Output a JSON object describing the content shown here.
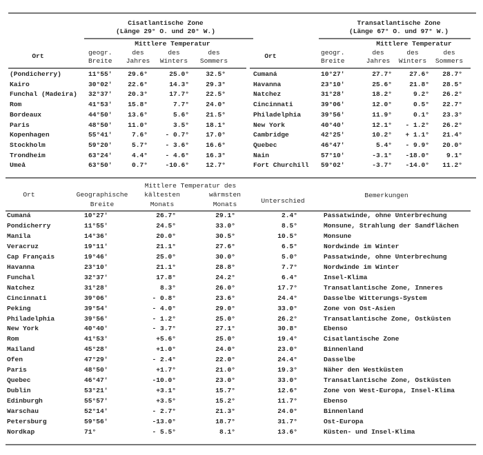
{
  "top_table": {
    "ort_label": "Ort",
    "left": {
      "zone_title": "Cisatlantische Zone",
      "zone_subtitle": "(Länge 29° O. und 20° W.)",
      "group_header": "Mittlere Temperatur",
      "headers": [
        [
          "geogr.",
          "Breite"
        ],
        [
          "des",
          "Jahres"
        ],
        [
          "des",
          "Winters"
        ],
        [
          "des",
          "Sommers"
        ]
      ],
      "rows": [
        [
          "(Pondicherry)",
          "11°55'",
          "29.6°",
          "25.0°",
          "32.5°"
        ],
        [
          "Kairo",
          "30°02'",
          "22.6°",
          "14.3°",
          "29.3°"
        ],
        [
          "Funchal (Madeira)",
          "32°37'",
          "20.3°",
          "17.7°",
          "22.5°"
        ],
        [
          "Rom",
          "41°53'",
          "15.8°",
          "7.7°",
          "24.0°"
        ],
        [
          "Bordeaux",
          "44°50'",
          "13.6°",
          "5.6°",
          "21.5°"
        ],
        [
          "Paris",
          "48°50'",
          "11.0°",
          "3.5°",
          "18.1°"
        ],
        [
          "Kopenhagen",
          "55°41'",
          "7.6°",
          "- 0.7°",
          "17.0°"
        ],
        [
          "Stockholm",
          "59°20'",
          "5.7°",
          "- 3.6°",
          "16.6°"
        ],
        [
          "Trondheim",
          "63°24'",
          "4.4°",
          "- 4.6°",
          "16.3°"
        ],
        [
          "Umeå",
          "63°50'",
          "0.7°",
          "-10.6°",
          "12.7°"
        ]
      ]
    },
    "right": {
      "zone_title": "Transatlantische Zone",
      "zone_subtitle": "(Länge 67° O. und 97° W.)",
      "group_header": "Mittlere Temperatur",
      "headers": [
        [
          "geogr.",
          "Breite"
        ],
        [
          "des",
          "Jahres"
        ],
        [
          "des",
          "Winters"
        ],
        [
          "des",
          "Sommers"
        ]
      ],
      "rows": [
        [
          "Cumaná",
          "10°27'",
          "27.7°",
          "27.6°",
          "28.7°"
        ],
        [
          "Havanna",
          "23°10'",
          "25.6°",
          "21.8°",
          "28.5°"
        ],
        [
          "Natchez",
          "31°28'",
          "18.2°",
          "9.2°",
          "26.2°"
        ],
        [
          "Cincinnati",
          "39°06'",
          "12.0°",
          "0.5°",
          "22.7°"
        ],
        [
          "Philadelphia",
          "39°56'",
          "11.9°",
          "0.1°",
          "23.3°"
        ],
        [
          "New York",
          "40°40'",
          "12.1°",
          "- 1.2°",
          "26.2°"
        ],
        [
          "Cambridge",
          "42°25'",
          "10.2°",
          "+ 1.1°",
          "21.4°"
        ],
        [
          "Quebec",
          "46°47'",
          "5.4°",
          "- 9.9°",
          "20.0°"
        ],
        [
          "Nain",
          "57°10'",
          "-3.1°",
          "-18.0°",
          "9.1°"
        ],
        [
          "Fort Churchill",
          "59°02'",
          "-3.7°",
          "-14.0°",
          "11.2°"
        ]
      ]
    }
  },
  "bottom_table": {
    "headers": {
      "ort": "Ort",
      "breite": [
        "Geographische",
        "Breite"
      ],
      "group": "Mittlere Temperatur des",
      "kalt": [
        "kältesten",
        "Monats"
      ],
      "warm": [
        "wärmsten",
        "Monats"
      ],
      "unterschied": "Unterschied",
      "bemerkungen": "Bemerkungen"
    },
    "rows": [
      [
        "Cumaná",
        "10°27'",
        "26.7°",
        "29.1°",
        "2.4°",
        "Passatwinde, ohne Unterbrechung"
      ],
      [
        "Pondicherry",
        "11°55'",
        "24.5°",
        "33.0°",
        "8.5°",
        "Monsune, Strahlung der Sandflächen"
      ],
      [
        "Manila",
        "14°36'",
        "20.0°",
        "30.5°",
        "10.5°",
        "Monsune"
      ],
      [
        "Veracruz",
        "19°11'",
        "21.1°",
        "27.6°",
        "6.5°",
        "Nordwinde im Winter"
      ],
      [
        "Cap Français",
        "19°46'",
        "25.0°",
        "30.0°",
        "5.0°",
        "Passatwinde, ohne Unterbrechung"
      ],
      [
        "Havanna",
        "23°10'",
        "21.1°",
        "28.8°",
        "7.7°",
        "Nordwinde im Winter"
      ],
      [
        "Funchal",
        "32°37'",
        "17.8°",
        "24.2°",
        "6.4°",
        "Insel-Klima"
      ],
      [
        "Natchez",
        "31°28'",
        "8.3°",
        "26.0°",
        "17.7°",
        "Transatlantische Zone, Inneres"
      ],
      [
        "Cincinnati",
        "39°06'",
        "- 0.8°",
        "23.6°",
        "24.4°",
        "Dasselbe Witterungs-System"
      ],
      [
        "Peking",
        "39°54'",
        "- 4.0°",
        "29.0°",
        "33.0°",
        "Zone von Ost-Asien"
      ],
      [
        "Philadelphia",
        "39°56'",
        "- 1.2°",
        "25.0°",
        "26.2°",
        "Transatlantische Zone, Ostküsten"
      ],
      [
        "New York",
        "40°40'",
        "- 3.7°",
        "27.1°",
        "30.8°",
        "Ebenso"
      ],
      [
        "Rom",
        "41°53'",
        "+5.6°",
        "25.0°",
        "19.4°",
        "Cisatlantische Zone"
      ],
      [
        "Mailand",
        "45°28'",
        "+1.0°",
        "24.0°",
        "23.0°",
        "Binnenland"
      ],
      [
        "Ofen",
        "47°29'",
        "- 2.4°",
        "22.0°",
        "24.4°",
        "Dasselbe"
      ],
      [
        "Paris",
        "48°50'",
        "+1.7°",
        "21.0°",
        "19.3°",
        "Näher den Westküsten"
      ],
      [
        "Quebec",
        "46°47'",
        "-10.0°",
        "23.0°",
        "33.0°",
        "Transatlantische Zone, Ostküsten"
      ],
      [
        "Dublin",
        "53°21'",
        "+3.1°",
        "15.7°",
        "12.6°",
        "Zone von West-Europa, Insel-Klima"
      ],
      [
        "Edinburgh",
        "55°57'",
        "+3.5°",
        "15.2°",
        "11.7°",
        "Ebenso"
      ],
      [
        "Warschau",
        "52°14'",
        "- 2.7°",
        "21.3°",
        "24.0°",
        "Binnenland"
      ],
      [
        "Petersburg",
        "59°56'",
        "-13.0°",
        "18.7°",
        "31.7°",
        "Ost-Europa"
      ],
      [
        "Nordkap",
        "71°",
        "- 5.5°",
        "8.1°",
        "13.6°",
        "Küsten- und Insel-Klima"
      ]
    ]
  }
}
